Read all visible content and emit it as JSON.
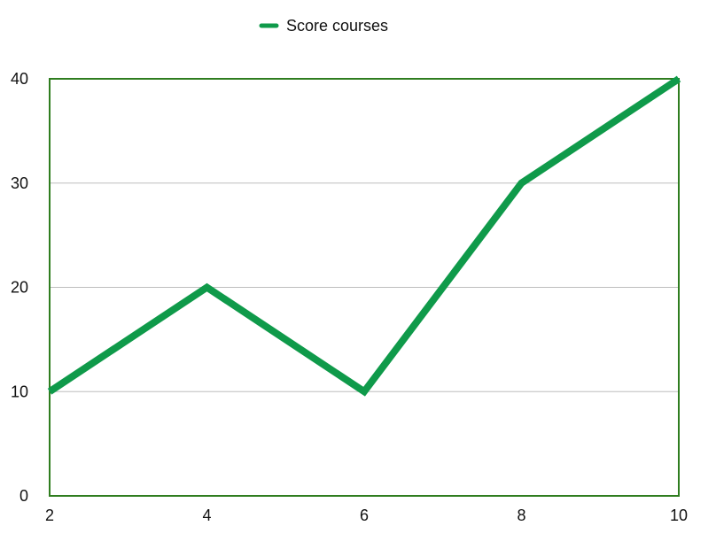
{
  "chart_data": {
    "type": "line",
    "x": [
      2,
      4,
      6,
      8,
      10
    ],
    "series": [
      {
        "name": "Score courses",
        "values": [
          10,
          20,
          10,
          30,
          40
        ]
      }
    ],
    "title": "",
    "xlabel": "",
    "ylabel": "",
    "xlim": [
      2,
      10
    ],
    "ylim": [
      0,
      40
    ],
    "x_ticks": [
      2,
      4,
      6,
      8,
      10
    ],
    "y_ticks": [
      0,
      10,
      20,
      30,
      40
    ],
    "grid": true,
    "legend_position": "top-center",
    "colors": {
      "series": "#0f9a4a",
      "frame": "#2f7d1f",
      "grid": "#bdbdbd"
    }
  }
}
